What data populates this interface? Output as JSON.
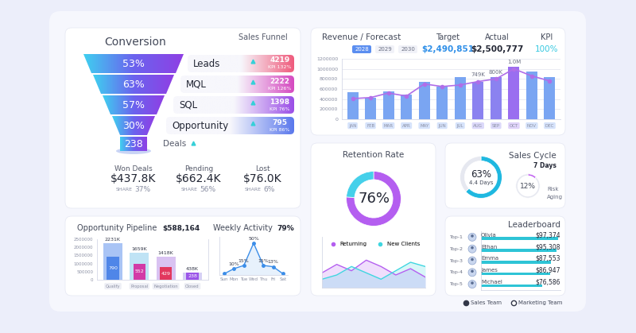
{
  "dashboard": {
    "conversion": {
      "title": "Conversion",
      "subtitle": "Sales Funnel",
      "stages": [
        {
          "rate": "53%",
          "label": "Leads",
          "count": "4219",
          "kpi": "KPI 132%"
        },
        {
          "rate": "63%",
          "label": "MQL",
          "count": "2222",
          "kpi": "KPI 126%"
        },
        {
          "rate": "57%",
          "label": "SQL",
          "count": "1398",
          "kpi": "KPI 76%"
        },
        {
          "rate": "30%",
          "label": "Opportunity",
          "count": "795",
          "kpi": "KPI 86%"
        }
      ],
      "deals": {
        "count": "238",
        "label": "Deals"
      },
      "outcomes": [
        {
          "label": "Won Deals",
          "amount": "$437.8K",
          "share_label": "SHARE",
          "share": "37%"
        },
        {
          "label": "Pending",
          "amount": "$662.4K",
          "share_label": "SHARE",
          "share": "56%"
        },
        {
          "label": "Lost",
          "amount": "$76.0K",
          "share_label": "SHARE",
          "share": "6%"
        }
      ]
    },
    "revenue": {
      "years": [
        "2028",
        "2029",
        "2030"
      ],
      "target_label": "Target",
      "target": "$2,490,851",
      "actual_label": "Actual",
      "actual": "$2,500,777",
      "kpi_label": "KPI",
      "kpi": "100%"
    },
    "sales_cycle": {
      "period": "7 Days",
      "cycle_note": "4.4 Days",
      "risk_note": [
        "Risk",
        "Aging"
      ]
    },
    "leaderboard": {
      "ranks": [
        "Top-1",
        "Top-2",
        "Top-3",
        "Top-4",
        "Top-5"
      ]
    },
    "pipeline": {
      "total": "$588,164"
    },
    "weekly": {
      "total": "79%"
    },
    "teams": [
      "Sales Team",
      "Marketing Team"
    ]
  },
  "chart_data": [
    {
      "type": "bar",
      "title": "Revenue / Forecast",
      "categories": [
        "JAN",
        "FEB",
        "MAR",
        "APR",
        "MAY",
        "JUN",
        "JUL",
        "AUG",
        "SEP",
        "OCT",
        "NOV",
        "DEC"
      ],
      "series": [
        {
          "type": "bar",
          "colors": [
            "#7aa5f2",
            "#7aa5f2",
            "#7aa5f2",
            "#7aa5f2",
            "#7aa5f2",
            "#7aa5f2",
            "#7aa5f2",
            "#8b82f0",
            "#8b82f0",
            "#9a6ef0",
            "#7aa5f2",
            "#7aa5f2"
          ],
          "values": [
            537000,
            426000,
            553000,
            489000,
            742000,
            647000,
            837000,
            742000,
            837000,
            1040000,
            947000,
            837000
          ]
        },
        {
          "type": "line",
          "color": "#b06ee8",
          "marker": "circle",
          "values": [
            410000,
            430000,
            520000,
            460000,
            700000,
            650000,
            680000,
            749000,
            800000,
            1000000,
            860000,
            760000
          ],
          "value_labels": [
            null,
            null,
            null,
            null,
            null,
            null,
            null,
            "749K",
            "800K",
            "1.0M",
            null,
            null
          ]
        }
      ],
      "ylim": [
        0,
        1200000
      ],
      "yticks": [
        0,
        200000,
        400000,
        600000,
        800000,
        1000000,
        1200000
      ],
      "grid": true
    },
    {
      "type": "donut",
      "title": "Retention Rate",
      "values": [
        76,
        24
      ],
      "colors": [
        "#b45ef0",
        "#45d0ea"
      ],
      "value_labels": [
        "76%",
        null
      ]
    },
    {
      "type": "area",
      "categories": [
        null,
        null,
        null,
        null,
        null,
        null,
        null,
        null
      ],
      "series": [
        {
          "name": "Returning",
          "color": "#b45ef0",
          "values": [
            3.5,
            5.5,
            4.0,
            6.5,
            5.0,
            3.0,
            4.5,
            2.5
          ]
        },
        {
          "name": "New Clients",
          "color": "#3fd6e0",
          "values": [
            2.0,
            3.0,
            5.0,
            3.5,
            2.0,
            4.0,
            6.0,
            5.0
          ]
        }
      ],
      "ylim": [
        0,
        12
      ],
      "tick_labels": false,
      "legend": "upper center"
    },
    {
      "type": "donut",
      "title": "Sales Cycle",
      "values": [
        63,
        37
      ],
      "colors": [
        "#1fb8e0",
        "#e6e8f0"
      ],
      "value_labels": [
        "63%",
        null
      ]
    },
    {
      "type": "donut",
      "values": [
        12,
        88
      ],
      "colors": [
        "#c05ef0",
        "#e6e8f0"
      ],
      "value_labels": [
        "12%",
        null
      ]
    },
    {
      "type": "bar",
      "title": "Leaderboard",
      "orientation": "horizontal",
      "categories": [
        "Olivia",
        "Ethan",
        "Emma",
        "James",
        "Michael"
      ],
      "values": [
        97374,
        95308,
        87553,
        86947,
        76586
      ],
      "value_labels": [
        "$97,374",
        "$95,308",
        "$87,553",
        "$86,947",
        "$76,586"
      ],
      "color": "#2ec4d6",
      "xlim": [
        0,
        100000
      ],
      "tick_labels": false
    },
    {
      "type": "bar",
      "title": "Opportunity Pipeline",
      "categories": [
        "Qualify",
        "Proposal",
        "Negotiation",
        "Closed"
      ],
      "series": [
        {
          "colors": [
            "#a9c4f5",
            "#bfe3f5",
            "#d9c2f2",
            "#d6d0f5"
          ],
          "values": [
            2231000,
            1659000,
            1418000,
            438000
          ],
          "value_labels": [
            "2231K",
            "1659K",
            "1418K",
            "438K"
          ]
        },
        {
          "axis": "y2",
          "colors": [
            "#4f86e8",
            "#d23aa6",
            "#e2375e",
            "#9b55e8"
          ],
          "values": [
            790,
            552,
            429,
            238
          ]
        }
      ],
      "ylim": [
        0,
        2500000
      ],
      "yticks": [
        0,
        500000,
        1000000,
        1500000,
        2000000,
        2500000
      ],
      "y2lim": [
        0,
        1400
      ],
      "y2ticks": [],
      "data_labels": true
    },
    {
      "type": "line",
      "title": "Weekly Activity",
      "categories": [
        "Sun",
        "Mon",
        "Tue",
        "Wed",
        "Thu",
        "Fri",
        "Sat"
      ],
      "values": [
        2,
        10,
        15,
        50,
        15,
        13,
        2
      ],
      "value_labels": [
        null,
        "10%",
        "15%",
        "50%",
        "15%",
        "13%",
        null
      ],
      "color": "#3b8de8",
      "marker": "circle",
      "ylim": [
        0,
        60
      ],
      "tick_labels": "x"
    }
  ]
}
